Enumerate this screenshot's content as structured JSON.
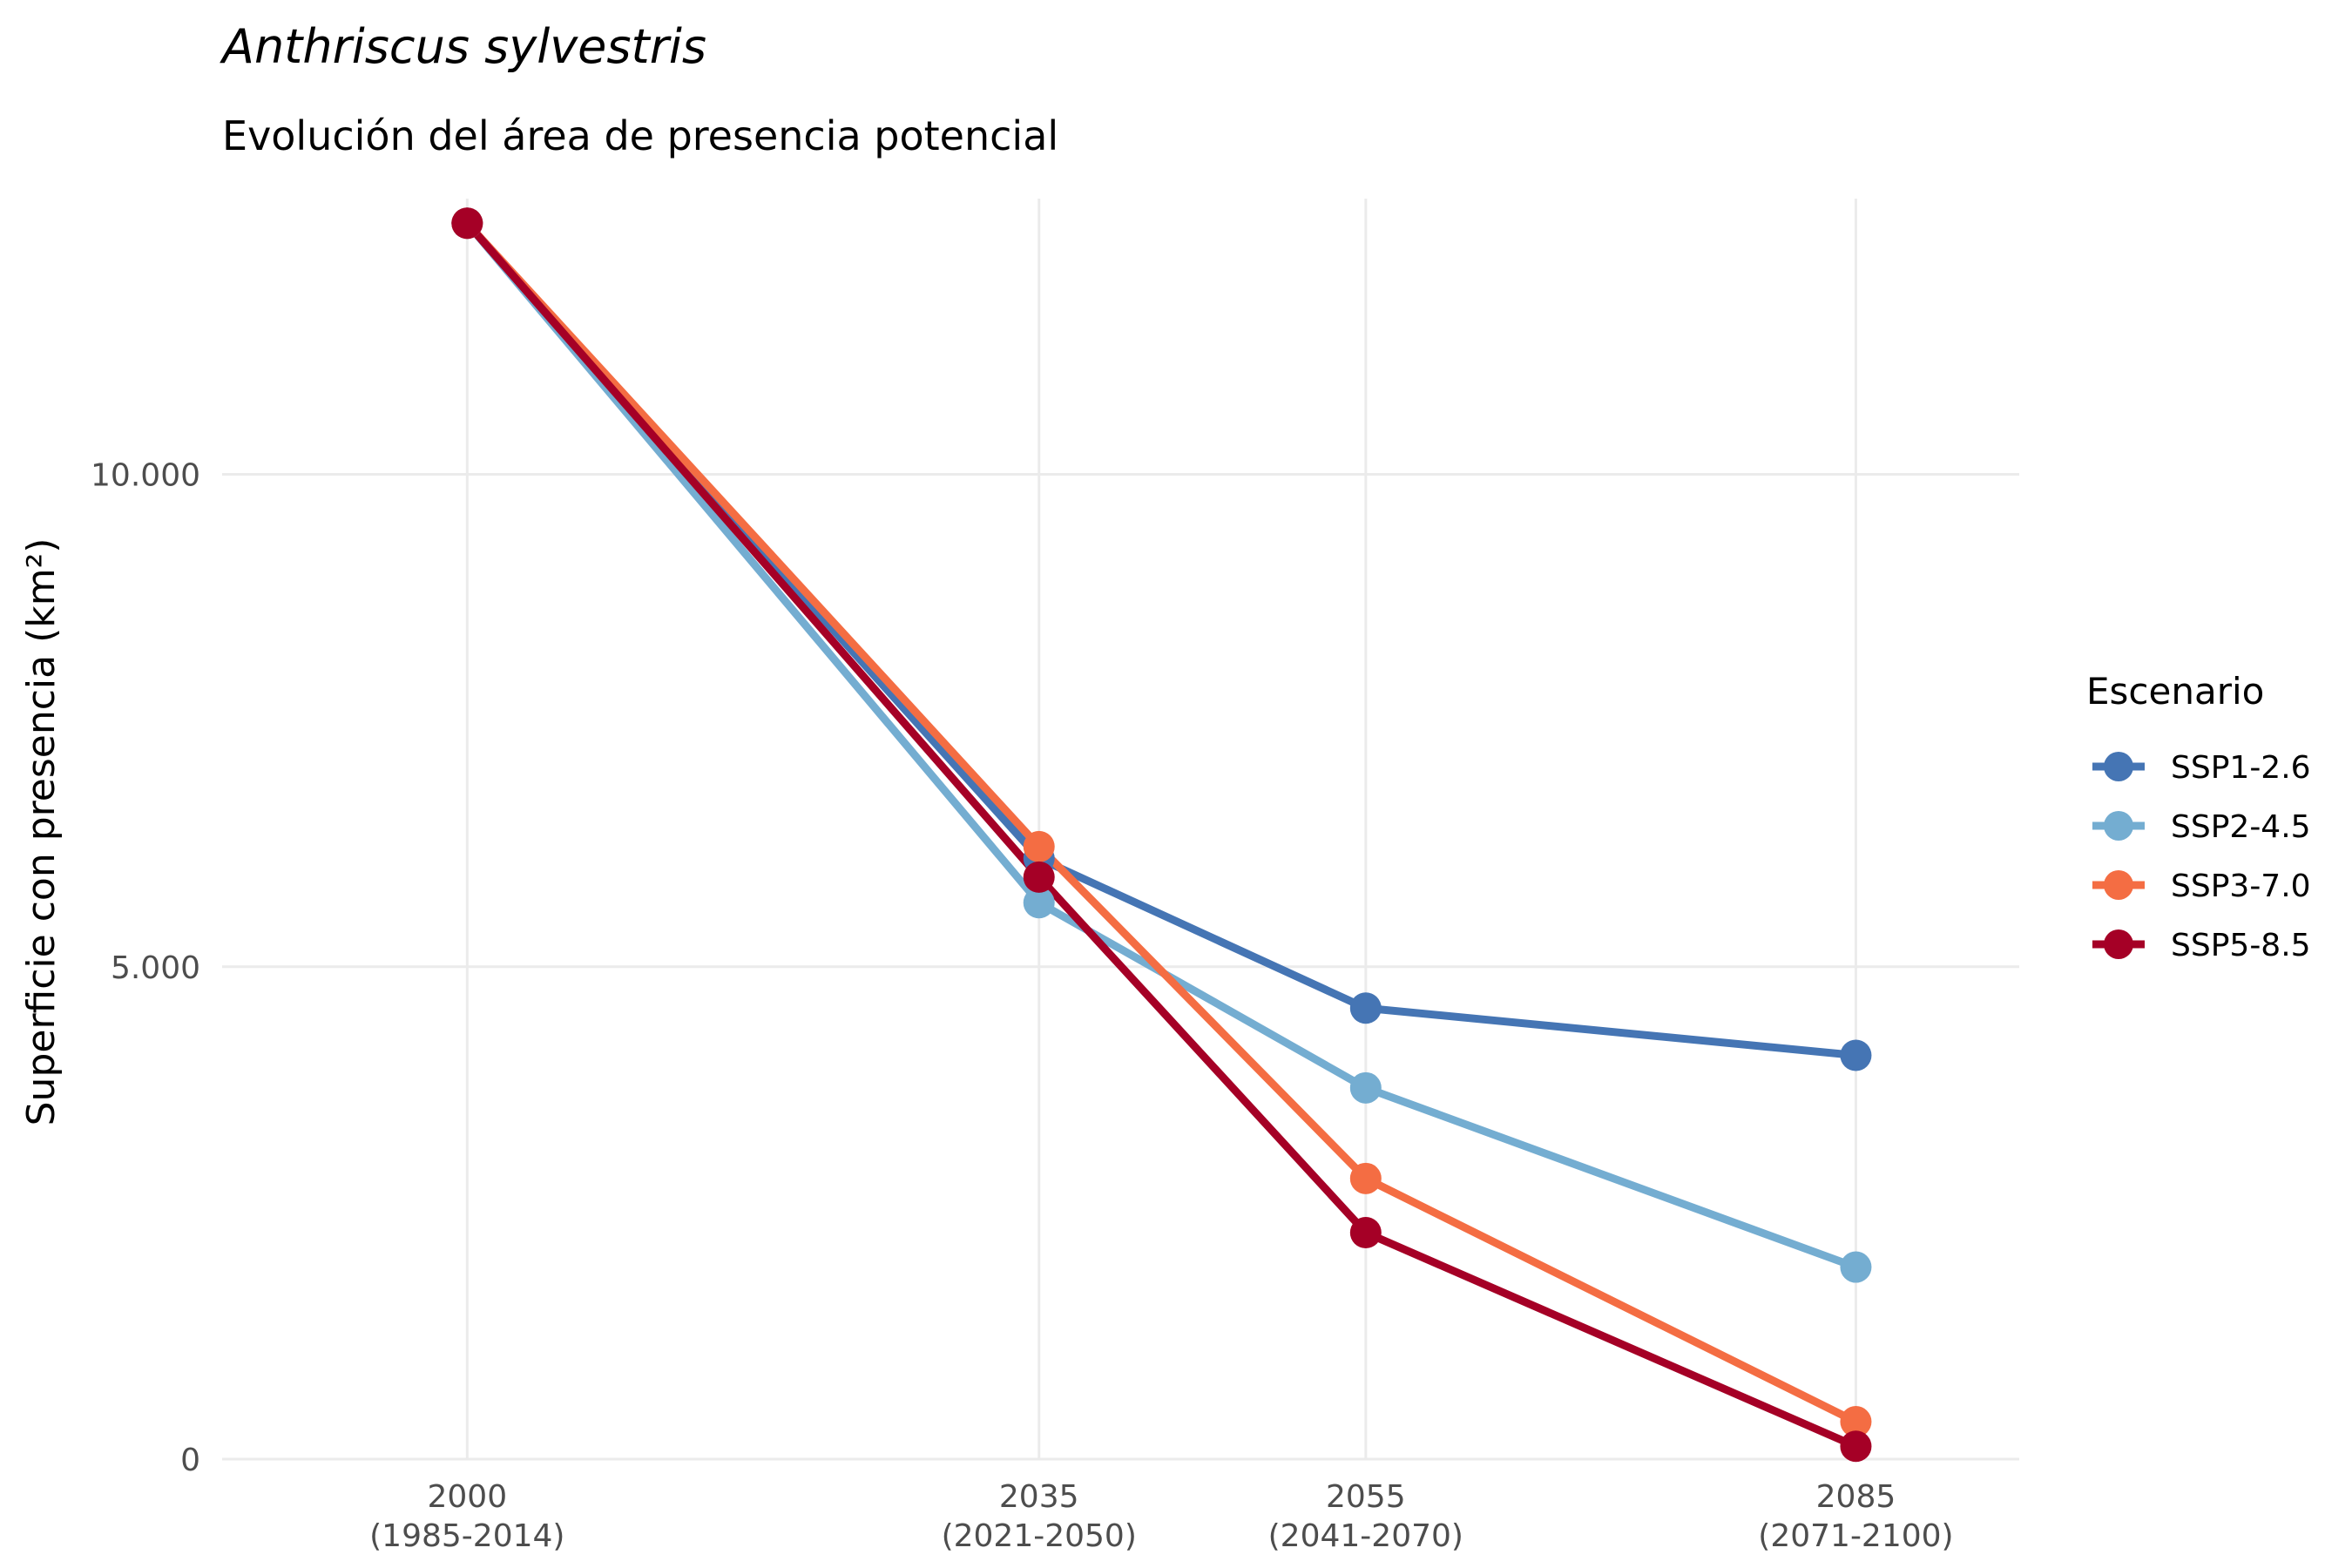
{
  "chart_data": {
    "type": "line",
    "title": "Anthriscus sylvestris",
    "subtitle": "Evolución del área de presencia potencial",
    "ylabel": "Superficie con presencia (km²)",
    "xlabel": "",
    "x": [
      2000,
      2035,
      2055,
      2085
    ],
    "x_tick_labels": [
      [
        "2000",
        "(1985-2014)"
      ],
      [
        "2035",
        "(2021-2050)"
      ],
      [
        "2055",
        "(2041-2070)"
      ],
      [
        "2085",
        "(2071-2100)"
      ]
    ],
    "xlim": [
      1985,
      2095
    ],
    "ylim": [
      0,
      12800
    ],
    "y_ticks": [
      0,
      5000,
      10000
    ],
    "y_tick_labels": [
      "0",
      "5.000",
      "10.000"
    ],
    "grid": true,
    "legend": {
      "title": "Escenario",
      "position": "right"
    },
    "series": [
      {
        "name": "SSP1-2.6",
        "color": "#4575b4",
        "values": [
          12550,
          6100,
          4580,
          4100
        ]
      },
      {
        "name": "SSP2-4.5",
        "color": "#74add1",
        "values": [
          12550,
          5650,
          3770,
          1950
        ]
      },
      {
        "name": "SSP3-7.0",
        "color": "#f46d43",
        "values": [
          12550,
          6220,
          2850,
          380
        ]
      },
      {
        "name": "SSP5-8.5",
        "color": "#a50026",
        "values": [
          12550,
          5910,
          2300,
          130
        ]
      }
    ]
  }
}
